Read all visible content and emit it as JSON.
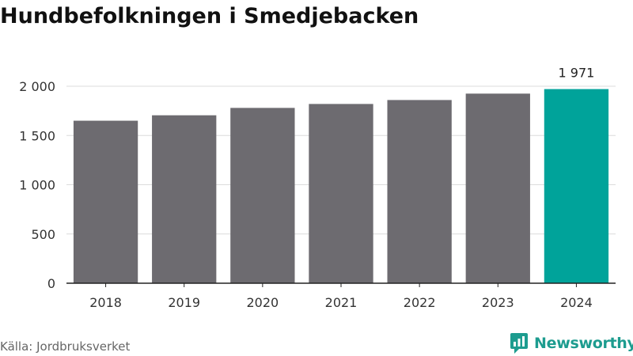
{
  "header": {
    "title": "Hundbefolkningen i Smedjebacken"
  },
  "footer": {
    "source": "Källa: Jordbruksverket",
    "brand": "Newsworthy"
  },
  "colors": {
    "bar": "#6d6b70",
    "highlight": "#00a39a",
    "brand": "#1d9c8f",
    "grid": "#dcdcdc",
    "axis": "#222222"
  },
  "icons": {
    "brand_logo": "newsworthy-logo-icon"
  },
  "chart_data": {
    "type": "bar",
    "title": "Hundbefolkningen i Smedjebacken",
    "xlabel": "",
    "ylabel": "",
    "categories": [
      "2018",
      "2019",
      "2020",
      "2021",
      "2022",
      "2023",
      "2024"
    ],
    "values": [
      1650,
      1705,
      1780,
      1820,
      1860,
      1925,
      1971
    ],
    "ylim": [
      0,
      2000
    ],
    "yticks": [
      0,
      500,
      1000,
      1500,
      2000
    ],
    "ytick_labels": [
      "0",
      "500",
      "1 000",
      "1 500",
      "2 000"
    ],
    "highlight": {
      "category": "2024",
      "value_label": "1 971"
    },
    "grid": true,
    "legend": "none"
  }
}
